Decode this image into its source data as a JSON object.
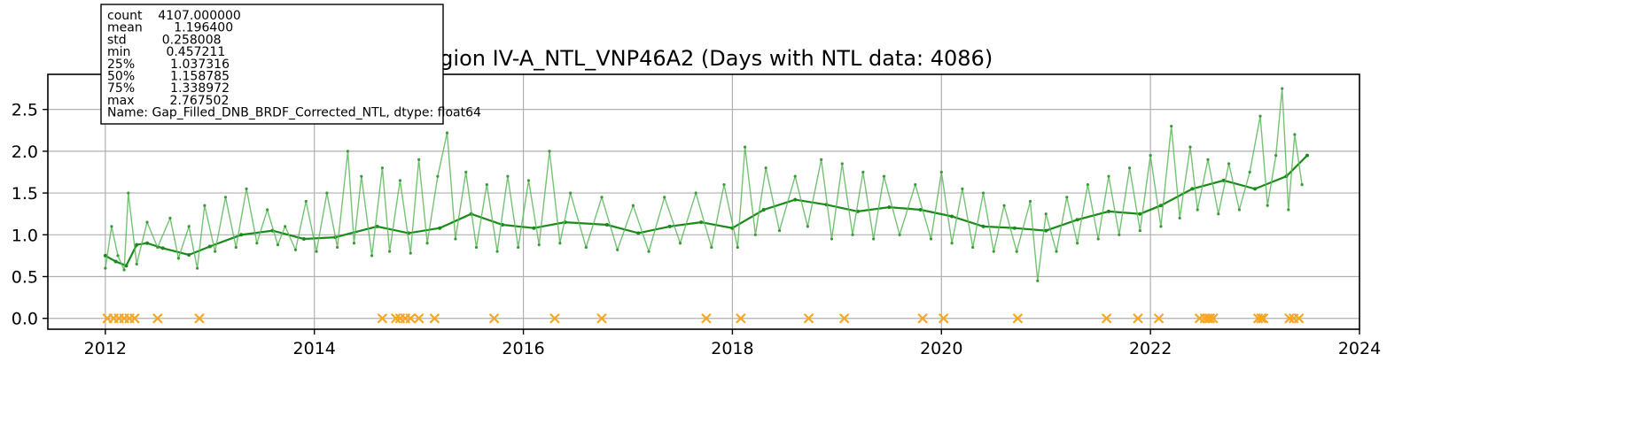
{
  "chart_data": {
    "type": "line",
    "title": "Region IV-A_NTL_VNP46A2 (Days with NTL data: 4086)",
    "xlabel": "",
    "ylabel": "",
    "xlim": [
      2011.45,
      2024.0
    ],
    "ylim": [
      -0.13,
      2.92
    ],
    "x_ticks": [
      2012,
      2014,
      2016,
      2018,
      2020,
      2022,
      2024
    ],
    "y_ticks": [
      0.0,
      0.5,
      1.0,
      1.5,
      2.0,
      2.5
    ],
    "y_tick_labels": [
      "0.0",
      "0.5",
      "1.0",
      "1.5",
      "2.0",
      "2.5"
    ],
    "grid": true,
    "stats_box_lines": [
      "count    4107.000000",
      "mean        1.196400",
      "std         0.258008",
      "min         0.457211",
      "25%         1.037316",
      "50%         1.158785",
      "75%         1.338972",
      "max         2.767502",
      "Name: Gap_Filled_DNB_BRDF_Corrected_NTL, dtype: float64"
    ],
    "series": [
      {
        "kind": "gap_filled_baseline",
        "color": "#1a8a1a",
        "x": [
          2012.0,
          2012.1,
          2012.2,
          2012.3,
          2012.4,
          2012.55,
          2012.8,
          2013.0,
          2013.3,
          2013.6,
          2013.9,
          2014.2,
          2014.6,
          2014.9,
          2015.2,
          2015.5,
          2015.8,
          2016.1,
          2016.4,
          2016.8,
          2017.1,
          2017.4,
          2017.7,
          2018.0,
          2018.3,
          2018.6,
          2018.9,
          2019.2,
          2019.5,
          2019.8,
          2020.1,
          2020.4,
          2020.7,
          2021.0,
          2021.3,
          2021.6,
          2021.9,
          2022.1,
          2022.4,
          2022.7,
          2023.0,
          2023.3,
          2023.5
        ],
        "y": [
          0.75,
          0.68,
          0.63,
          0.88,
          0.9,
          0.84,
          0.76,
          0.86,
          1.0,
          1.05,
          0.95,
          0.97,
          1.1,
          1.02,
          1.08,
          1.25,
          1.12,
          1.08,
          1.15,
          1.12,
          1.02,
          1.1,
          1.15,
          1.08,
          1.3,
          1.42,
          1.36,
          1.28,
          1.33,
          1.3,
          1.22,
          1.1,
          1.08,
          1.05,
          1.18,
          1.28,
          1.25,
          1.35,
          1.55,
          1.65,
          1.55,
          1.7,
          1.95
        ]
      },
      {
        "kind": "observed_ntl",
        "color": "#5cb85c",
        "x": [
          2012.0,
          2012.06,
          2012.12,
          2012.18,
          2012.22,
          2012.3,
          2012.4,
          2012.5,
          2012.62,
          2012.7,
          2012.8,
          2012.88,
          2012.95,
          2013.05,
          2013.15,
          2013.25,
          2013.35,
          2013.45,
          2013.55,
          2013.65,
          2013.72,
          2013.82,
          2013.92,
          2014.02,
          2014.12,
          2014.22,
          2014.32,
          2014.38,
          2014.45,
          2014.55,
          2014.65,
          2014.72,
          2014.82,
          2014.92,
          2015.0,
          2015.08,
          2015.18,
          2015.27,
          2015.35,
          2015.45,
          2015.55,
          2015.65,
          2015.75,
          2015.85,
          2015.95,
          2016.05,
          2016.15,
          2016.25,
          2016.35,
          2016.45,
          2016.6,
          2016.75,
          2016.9,
          2017.05,
          2017.2,
          2017.35,
          2017.5,
          2017.65,
          2017.8,
          2017.92,
          2018.05,
          2018.12,
          2018.22,
          2018.32,
          2018.45,
          2018.6,
          2018.72,
          2018.85,
          2018.95,
          2019.05,
          2019.15,
          2019.25,
          2019.35,
          2019.45,
          2019.6,
          2019.75,
          2019.9,
          2020.0,
          2020.1,
          2020.2,
          2020.3,
          2020.4,
          2020.5,
          2020.6,
          2020.72,
          2020.85,
          2020.92,
          2021.0,
          2021.1,
          2021.2,
          2021.3,
          2021.4,
          2021.5,
          2021.6,
          2021.7,
          2021.8,
          2021.9,
          2022.0,
          2022.1,
          2022.2,
          2022.28,
          2022.38,
          2022.45,
          2022.55,
          2022.65,
          2022.75,
          2022.85,
          2022.95,
          2023.05,
          2023.12,
          2023.2,
          2023.26,
          2023.32,
          2023.38,
          2023.45
        ],
        "y": [
          0.6,
          1.1,
          0.75,
          0.58,
          1.5,
          0.65,
          1.15,
          0.85,
          1.2,
          0.72,
          1.1,
          0.6,
          1.35,
          0.8,
          1.45,
          0.85,
          1.55,
          0.9,
          1.3,
          0.88,
          1.1,
          0.82,
          1.4,
          0.8,
          1.5,
          0.85,
          2.0,
          0.9,
          1.7,
          0.75,
          1.8,
          0.8,
          1.65,
          0.78,
          1.9,
          0.9,
          1.7,
          2.22,
          0.95,
          1.75,
          0.85,
          1.6,
          0.8,
          1.7,
          0.85,
          1.65,
          0.88,
          2.0,
          0.9,
          1.5,
          0.85,
          1.45,
          0.82,
          1.35,
          0.8,
          1.45,
          0.9,
          1.5,
          0.85,
          1.6,
          0.85,
          2.05,
          1.0,
          1.8,
          1.05,
          1.7,
          1.1,
          1.9,
          0.95,
          1.85,
          1.0,
          1.75,
          0.95,
          1.7,
          1.0,
          1.6,
          0.95,
          1.75,
          0.9,
          1.55,
          0.85,
          1.5,
          0.8,
          1.35,
          0.8,
          1.4,
          0.45,
          1.25,
          0.8,
          1.45,
          0.9,
          1.6,
          0.95,
          1.7,
          1.0,
          1.8,
          1.05,
          1.95,
          1.1,
          2.3,
          1.2,
          2.05,
          1.3,
          1.9,
          1.25,
          1.85,
          1.3,
          1.75,
          2.42,
          1.35,
          1.95,
          2.75,
          1.3,
          2.2,
          1.6
        ]
      }
    ],
    "missing_markers": {
      "color": "#f5a623",
      "symbol": "x",
      "y": 0.0,
      "x": [
        2012.02,
        2012.08,
        2012.13,
        2012.18,
        2012.23,
        2012.28,
        2012.5,
        2012.9,
        2014.65,
        2014.78,
        2014.82,
        2014.87,
        2014.92,
        2015.0,
        2015.15,
        2015.72,
        2016.3,
        2016.75,
        2017.75,
        2018.08,
        2018.73,
        2019.07,
        2019.82,
        2020.02,
        2020.73,
        2021.58,
        2021.88,
        2022.08,
        2022.47,
        2022.52,
        2022.55,
        2022.57,
        2022.6,
        2023.03,
        2023.06,
        2023.08,
        2023.33,
        2023.37,
        2023.42
      ]
    }
  }
}
